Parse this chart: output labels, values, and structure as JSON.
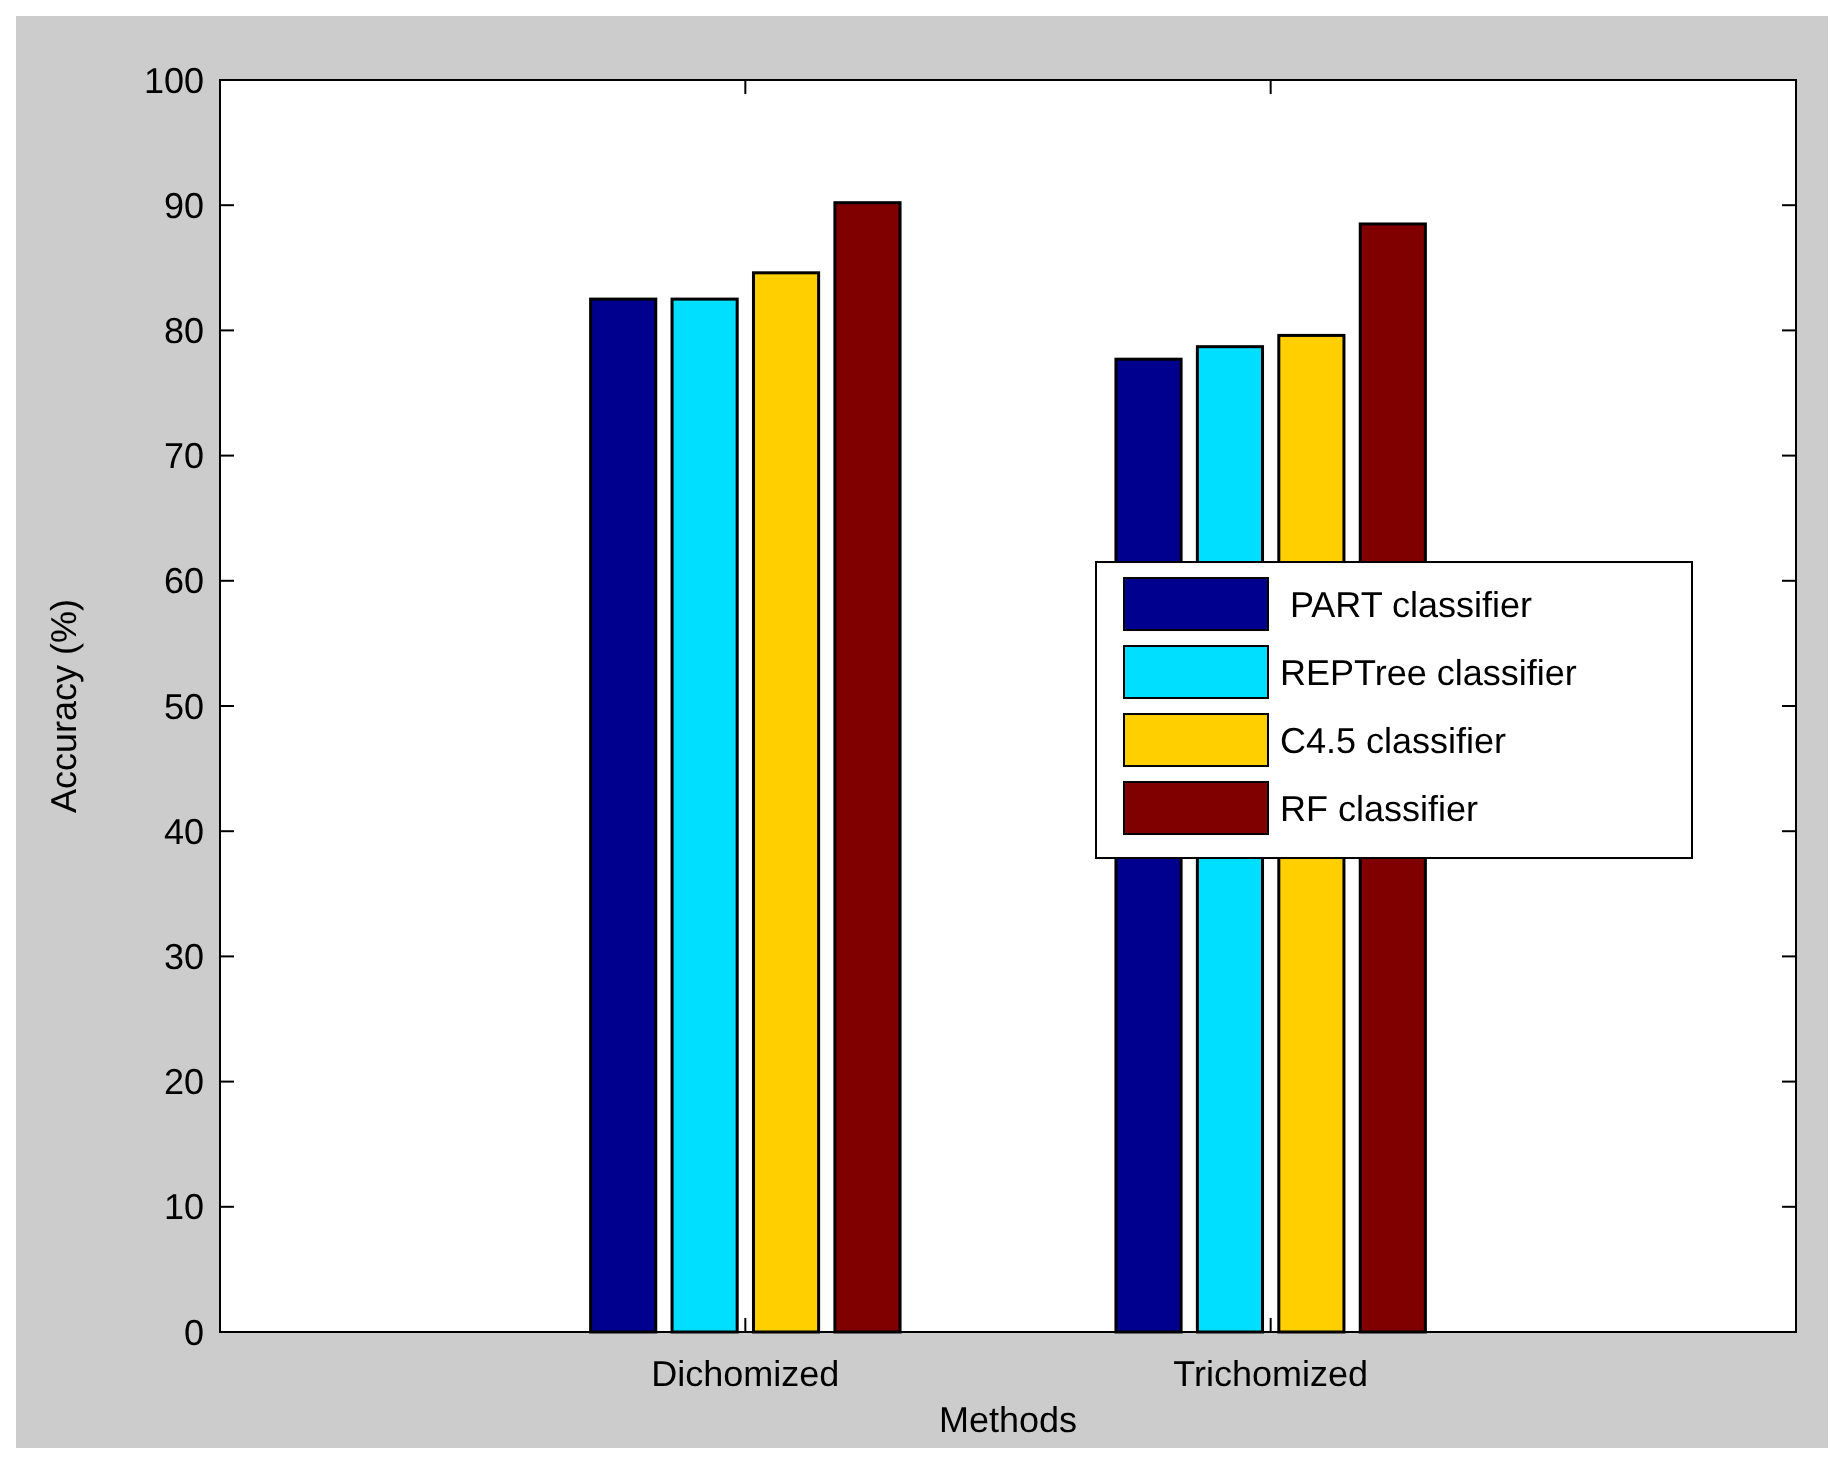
{
  "chart_data": {
    "type": "bar",
    "xlabel": "Methods",
    "ylabel": "Accuracy (%)",
    "categories": [
      "Dichomized",
      "Trichomized"
    ],
    "series": [
      {
        "name": " PART classifier",
        "color": "#00008f",
        "values": [
          82.5,
          77.7
        ]
      },
      {
        "name": "REPTree classifier",
        "color": "#00dfff",
        "values": [
          82.5,
          78.7
        ]
      },
      {
        "name": "C4.5 classifier",
        "color": "#ffcf00",
        "values": [
          84.6,
          79.6
        ]
      },
      {
        "name": "RF classifier",
        "color": "#800000",
        "values": [
          90.2,
          88.5
        ]
      }
    ],
    "ylim": [
      0,
      100
    ],
    "yticks": [
      0,
      10,
      20,
      30,
      40,
      50,
      60,
      70,
      80,
      90,
      100
    ],
    "legend": "right",
    "grid": false
  }
}
